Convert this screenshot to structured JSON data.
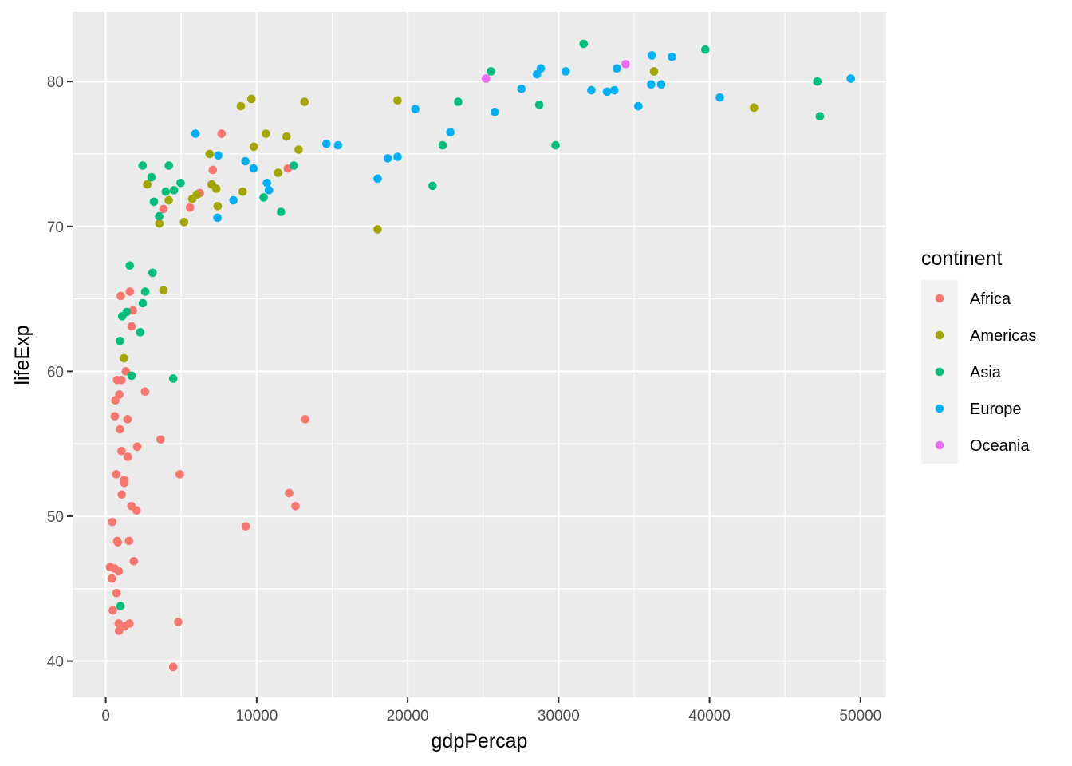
{
  "chart_data": {
    "type": "scatter",
    "title": "",
    "xlabel": "gdpPercap",
    "ylabel": "lifeExp",
    "xlim": [
      -2200,
      51700
    ],
    "ylim": [
      37.5,
      84.8
    ],
    "x_ticks": [
      0,
      10000,
      20000,
      30000,
      40000,
      50000
    ],
    "x_tick_labels": [
      "0",
      "10000",
      "20000",
      "30000",
      "40000",
      "50000"
    ],
    "y_ticks": [
      40,
      50,
      60,
      70,
      80
    ],
    "y_tick_labels": [
      "40",
      "50",
      "60",
      "70",
      "80"
    ],
    "grid": true,
    "legend": {
      "title": "continent",
      "placement": "right",
      "entries": [
        "Africa",
        "Americas",
        "Asia",
        "Europe",
        "Oceania"
      ]
    },
    "colors": {
      "Africa": "#F8766D",
      "Americas": "#A3A500",
      "Asia": "#00BF7D",
      "Europe": "#00B0F6",
      "Oceania": "#E76BF3"
    },
    "series": [
      {
        "name": "Africa",
        "points": [
          [
            6230,
            72.3
          ],
          [
            4800,
            42.7
          ],
          [
            1440,
            56.7
          ],
          [
            12570,
            50.7
          ],
          [
            1220,
            52.3
          ],
          [
            430,
            49.6
          ],
          [
            2040,
            50.4
          ],
          [
            710,
            44.7
          ],
          [
            1700,
            50.7
          ],
          [
            990,
            65.2
          ],
          [
            280,
            46.5
          ],
          [
            3630,
            55.3
          ],
          [
            1540,
            48.3
          ],
          [
            2080,
            54.8
          ],
          [
            5580,
            71.3
          ],
          [
            12150,
            51.6
          ],
          [
            640,
            58.0
          ],
          [
            690,
            52.9
          ],
          [
            13210,
            56.7
          ],
          [
            750,
            59.4
          ],
          [
            1330,
            60.0
          ],
          [
            940,
            56.0
          ],
          [
            580,
            46.4
          ],
          [
            1460,
            54.1
          ],
          [
            1570,
            42.6
          ],
          [
            410,
            45.7
          ],
          [
            12060,
            74.0
          ],
          [
            1040,
            59.4
          ],
          [
            760,
            48.3
          ],
          [
            1040,
            54.5
          ],
          [
            1800,
            64.2
          ],
          [
            4900,
            52.9
          ],
          [
            880,
            42.1
          ],
          [
            4470,
            39.6
          ],
          [
            2600,
            58.6
          ],
          [
            860,
            46.2
          ],
          [
            470,
            43.5
          ],
          [
            7670,
            76.4
          ],
          [
            1060,
            51.5
          ],
          [
            1600,
            65.5
          ],
          [
            3820,
            71.2
          ],
          [
            7090,
            73.9
          ],
          [
            9270,
            49.3
          ],
          [
            1710,
            63.1
          ],
          [
            860,
            42.6
          ],
          [
            1860,
            46.9
          ],
          [
            1250,
            42.4
          ],
          [
            800,
            48.2
          ],
          [
            600,
            56.9
          ],
          [
            1220,
            52.5
          ],
          [
            900,
            58.4
          ],
          [
            6230,
            72.3
          ]
        ]
      },
      {
        "name": "Americas",
        "points": [
          [
            12780,
            75.3
          ],
          [
            3820,
            65.6
          ],
          [
            9070,
            72.4
          ],
          [
            36320,
            80.7
          ],
          [
            13170,
            78.6
          ],
          [
            7010,
            72.9
          ],
          [
            9650,
            78.8
          ],
          [
            8950,
            78.3
          ],
          [
            6030,
            72.2
          ],
          [
            6880,
            75.0
          ],
          [
            5730,
            71.9
          ],
          [
            5190,
            70.3
          ],
          [
            2750,
            72.9
          ],
          [
            3550,
            70.2
          ],
          [
            7320,
            72.6
          ],
          [
            11980,
            76.2
          ],
          [
            2750,
            72.9
          ],
          [
            9810,
            75.5
          ],
          [
            4170,
            71.8
          ],
          [
            7410,
            71.4
          ],
          [
            19330,
            78.7
          ],
          [
            18010,
            69.8
          ],
          [
            42950,
            78.2
          ],
          [
            10610,
            76.4
          ],
          [
            11420,
            73.7
          ],
          [
            1200,
            60.9
          ]
        ]
      },
      {
        "name": "Asia",
        "points": [
          [
            970,
            43.8
          ],
          [
            29800,
            75.6
          ],
          [
            1390,
            64.1
          ],
          [
            1710,
            59.7
          ],
          [
            4960,
            73.0
          ],
          [
            39720,
            82.2
          ],
          [
            2450,
            64.7
          ],
          [
            3540,
            70.7
          ],
          [
            4470,
            59.5
          ],
          [
            25520,
            80.7
          ],
          [
            31660,
            82.6
          ],
          [
            4520,
            72.5
          ],
          [
            1590,
            67.3
          ],
          [
            23350,
            78.6
          ],
          [
            47310,
            77.6
          ],
          [
            10460,
            72.0
          ],
          [
            3100,
            66.8
          ],
          [
            940,
            62.1
          ],
          [
            1090,
            63.8
          ],
          [
            2610,
            65.5
          ],
          [
            22320,
            75.6
          ],
          [
            21650,
            72.8
          ],
          [
            47140,
            80.0
          ],
          [
            3970,
            72.4
          ],
          [
            4180,
            74.2
          ],
          [
            28720,
            78.4
          ],
          [
            3190,
            71.7
          ],
          [
            2280,
            62.7
          ],
          [
            12450,
            74.2
          ],
          [
            2440,
            74.2
          ],
          [
            3030,
            73.4
          ],
          [
            11610,
            71.0
          ]
        ]
      },
      {
        "name": "Europe",
        "points": [
          [
            5940,
            76.4
          ],
          [
            36130,
            79.8
          ],
          [
            33690,
            79.4
          ],
          [
            7450,
            74.9
          ],
          [
            10680,
            73.0
          ],
          [
            14620,
            75.7
          ],
          [
            22830,
            76.5
          ],
          [
            35280,
            78.3
          ],
          [
            33210,
            79.3
          ],
          [
            30470,
            80.7
          ],
          [
            32170,
            79.4
          ],
          [
            27540,
            79.5
          ],
          [
            18010,
            73.3
          ],
          [
            36180,
            81.8
          ],
          [
            40680,
            78.9
          ],
          [
            28570,
            80.5
          ],
          [
            9250,
            74.5
          ],
          [
            36800,
            79.8
          ],
          [
            49360,
            80.2
          ],
          [
            20510,
            78.1
          ],
          [
            19330,
            74.8
          ],
          [
            10810,
            72.5
          ],
          [
            9790,
            74.0
          ],
          [
            18680,
            74.7
          ],
          [
            25770,
            77.9
          ],
          [
            28820,
            80.9
          ],
          [
            33860,
            80.9
          ],
          [
            37510,
            81.7
          ],
          [
            8460,
            71.8
          ],
          [
            7400,
            70.6
          ],
          [
            15390,
            75.6
          ]
        ]
      },
      {
        "name": "Oceania",
        "points": [
          [
            34440,
            81.2
          ],
          [
            25190,
            80.2
          ]
        ]
      }
    ]
  }
}
